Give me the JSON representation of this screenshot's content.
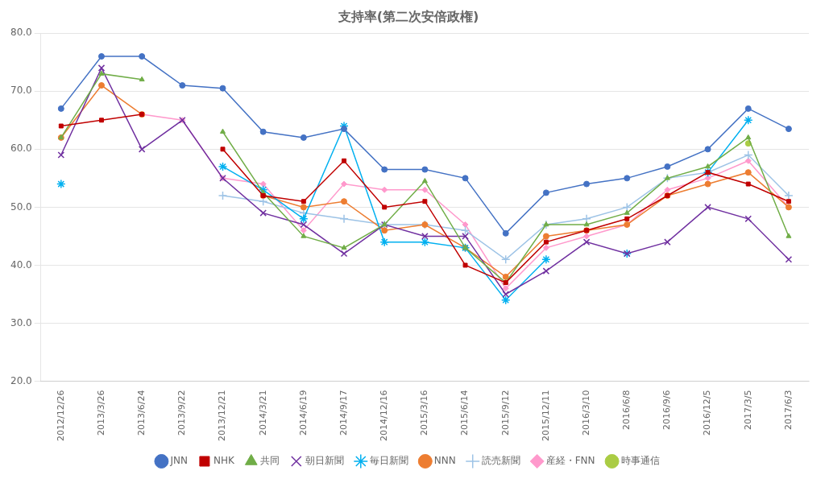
{
  "chart_data": {
    "type": "line",
    "title": "支持率(第二次安倍政権)",
    "categories": [
      "2012/12/26",
      "2013/3/26",
      "2013/6/24",
      "2013/9/22",
      "2013/12/21",
      "2014/3/21",
      "2014/6/19",
      "2014/9/17",
      "2014/12/16",
      "2015/3/16",
      "2015/6/14",
      "2015/9/12",
      "2015/12/11",
      "2016/3/10",
      "2016/6/8",
      "2016/9/6",
      "2016/12/5",
      "2017/3/5",
      "2017/6/3"
    ],
    "series": [
      {
        "name": "JNN",
        "color": "#4472C4",
        "marker": "circle",
        "values": [
          67,
          76,
          76,
          71,
          70.5,
          63,
          62,
          63.5,
          56.5,
          56.5,
          55,
          45.5,
          52.5,
          54,
          55,
          57,
          60,
          67,
          63.5
        ]
      },
      {
        "name": "NHK",
        "color": "#C00000",
        "marker": "square",
        "values": [
          64,
          65,
          66,
          null,
          60,
          52,
          51,
          58,
          50,
          51,
          40,
          37,
          44,
          46,
          48,
          52,
          56,
          54,
          51
        ]
      },
      {
        "name": "共同",
        "color": "#70AD47",
        "marker": "triangle",
        "values": [
          62,
          73,
          72,
          null,
          63,
          52.5,
          45,
          43,
          47,
          54.5,
          43,
          37,
          47,
          47,
          49,
          55,
          57,
          62,
          45
        ]
      },
      {
        "name": "朝日新聞",
        "color": "#7030A0",
        "marker": "x",
        "values": [
          59,
          74,
          60,
          65,
          55,
          49,
          47,
          42,
          47,
          45,
          45,
          35,
          39,
          44,
          42,
          44,
          50,
          48,
          41
        ]
      },
      {
        "name": "毎日新聞",
        "color": "#00B0F0",
        "marker": "star",
        "values": [
          54,
          null,
          null,
          null,
          57,
          53,
          48,
          64,
          44,
          44,
          43,
          34,
          41,
          null,
          42,
          null,
          56,
          65,
          null
        ]
      },
      {
        "name": "NNN",
        "color": "#ED7D31",
        "marker": "circle",
        "values": [
          62,
          71,
          66,
          null,
          null,
          52,
          50,
          51,
          46,
          47,
          43,
          38,
          45,
          46,
          47,
          52,
          54,
          56,
          50
        ]
      },
      {
        "name": "読売新聞",
        "color": "#9DC3E6",
        "marker": "plus",
        "values": [
          null,
          null,
          null,
          null,
          52,
          51,
          49,
          48,
          47,
          47,
          46,
          41,
          47,
          48,
          50,
          55,
          56,
          59,
          52
        ]
      },
      {
        "name": "産経・FNN",
        "color": "#FF99CC",
        "marker": "diamond",
        "values": [
          null,
          null,
          66,
          65,
          55,
          54,
          46,
          54,
          53,
          53,
          47,
          36,
          43,
          45,
          47,
          53,
          55,
          58,
          50
        ]
      },
      {
        "name": "時事通信",
        "color": "#AACC44",
        "marker": "circle",
        "values": [
          null,
          null,
          null,
          null,
          null,
          null,
          null,
          null,
          null,
          null,
          null,
          null,
          null,
          null,
          null,
          null,
          null,
          61,
          null
        ]
      }
    ],
    "ylim": [
      20,
      80
    ],
    "yticks": [
      {
        "value": 20,
        "label": "20.0"
      },
      {
        "value": 30,
        "label": "30.0"
      },
      {
        "value": 40,
        "label": "40.0"
      },
      {
        "value": 50,
        "label": "50.0"
      },
      {
        "value": 60,
        "label": "60.0"
      },
      {
        "value": 70,
        "label": "70.0"
      },
      {
        "value": 80,
        "label": "80.0"
      }
    ],
    "grid": true,
    "legend": "bottom"
  }
}
